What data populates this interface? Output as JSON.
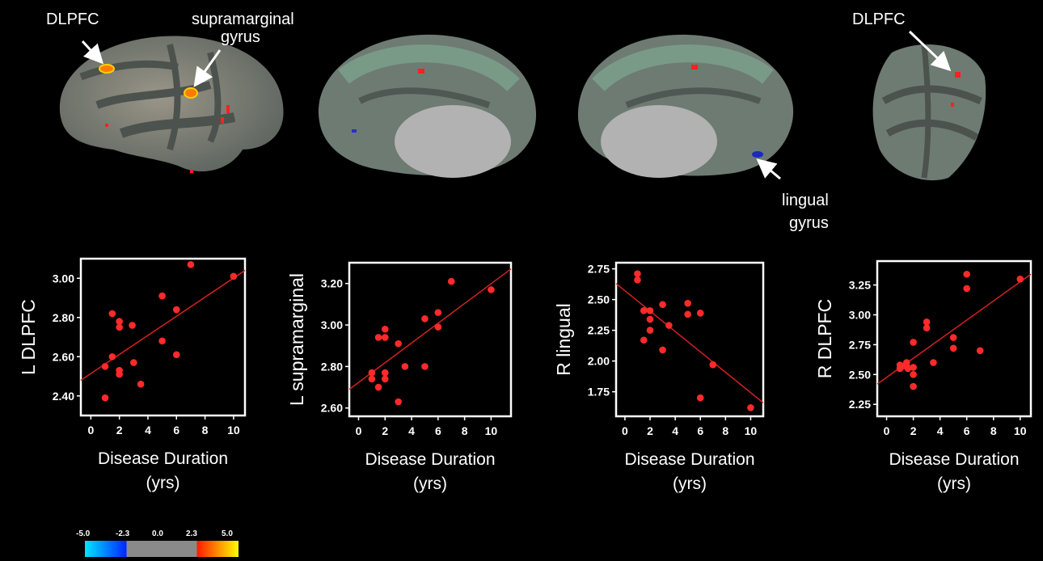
{
  "annotations": {
    "dlpfc_left": "DLPFC",
    "supramarginal_line1": "supramarginal",
    "supramarginal_line2": "gyrus",
    "lingual_line1": "lingual",
    "lingual_line2": "gyrus",
    "dlpfc_right": "DLPFC"
  },
  "colors": {
    "background": "#000000",
    "point": "#ff2a2a",
    "fit_line": "#d42020",
    "frame": "#ffffff"
  },
  "colorbar": {
    "ticks": [
      "-5.0",
      "-2.3",
      "0.0",
      "2.3",
      "5.0"
    ],
    "stops": [
      "#00e5ff",
      "#0026ff",
      "#8a8a8a",
      "#ff1a00",
      "#ffff00"
    ]
  },
  "chart_data": [
    {
      "type": "scatter",
      "xlabel_line1": "Disease Duration",
      "xlabel_line2": "(yrs)",
      "ylabel": "L DLPFC",
      "xlim": [
        -0.7,
        10.8
      ],
      "ylim": [
        2.3,
        3.1
      ],
      "xticks": [
        "0",
        "2",
        "4",
        "6",
        "8",
        "10"
      ],
      "yticks": [
        "2.40",
        "2.60",
        "2.80",
        "3.00"
      ],
      "points": [
        [
          1.0,
          2.39
        ],
        [
          1.0,
          2.55
        ],
        [
          1.5,
          2.6
        ],
        [
          1.5,
          2.82
        ],
        [
          2.0,
          2.78
        ],
        [
          2.0,
          2.75
        ],
        [
          2.0,
          2.53
        ],
        [
          2.0,
          2.51
        ],
        [
          2.9,
          2.76
        ],
        [
          3.0,
          2.57
        ],
        [
          3.5,
          2.46
        ],
        [
          5.0,
          2.91
        ],
        [
          5.0,
          2.68
        ],
        [
          6.0,
          2.84
        ],
        [
          6.0,
          2.61
        ],
        [
          7.0,
          3.07
        ],
        [
          10.0,
          3.01
        ]
      ],
      "fit": [
        [
          -0.7,
          2.48
        ],
        [
          10.8,
          3.04
        ]
      ]
    },
    {
      "type": "scatter",
      "xlabel_line1": "Disease Duration",
      "xlabel_line2": "(yrs)",
      "ylabel": "L supramarginal",
      "xlim": [
        -0.7,
        11.5
      ],
      "ylim": [
        2.56,
        3.3
      ],
      "xticks": [
        "0",
        "2",
        "4",
        "6",
        "8",
        "10"
      ],
      "yticks": [
        "2.60",
        "2.80",
        "3.00",
        "3.20"
      ],
      "points": [
        [
          1.0,
          2.77
        ],
        [
          1.0,
          2.74
        ],
        [
          1.5,
          2.94
        ],
        [
          1.5,
          2.7
        ],
        [
          2.0,
          2.98
        ],
        [
          2.0,
          2.94
        ],
        [
          2.0,
          2.77
        ],
        [
          2.0,
          2.74
        ],
        [
          3.0,
          2.91
        ],
        [
          3.0,
          2.63
        ],
        [
          3.5,
          2.8
        ],
        [
          5.0,
          3.03
        ],
        [
          5.0,
          2.8
        ],
        [
          6.0,
          3.06
        ],
        [
          6.0,
          2.99
        ],
        [
          7.0,
          3.21
        ],
        [
          10.0,
          3.17
        ]
      ],
      "fit": [
        [
          -0.7,
          2.69
        ],
        [
          11.5,
          3.27
        ]
      ]
    },
    {
      "type": "scatter",
      "xlabel_line1": "Disease Duration",
      "xlabel_line2": "(yrs)",
      "ylabel": "R lingual",
      "xlim": [
        -0.7,
        11.0
      ],
      "ylim": [
        1.55,
        2.8
      ],
      "xticks": [
        "0",
        "2",
        "4",
        "6",
        "8",
        "10"
      ],
      "yticks": [
        "1.75",
        "2.00",
        "2.25",
        "2.50",
        "2.75"
      ],
      "points": [
        [
          1.0,
          2.71
        ],
        [
          1.0,
          2.66
        ],
        [
          1.5,
          2.41
        ],
        [
          1.5,
          2.17
        ],
        [
          2.0,
          2.41
        ],
        [
          2.0,
          2.34
        ],
        [
          2.0,
          2.25
        ],
        [
          3.0,
          2.46
        ],
        [
          3.0,
          2.09
        ],
        [
          3.5,
          2.29
        ],
        [
          5.0,
          2.47
        ],
        [
          5.0,
          2.38
        ],
        [
          6.0,
          2.39
        ],
        [
          6.0,
          1.7
        ],
        [
          7.0,
          1.97
        ],
        [
          10.0,
          1.62
        ]
      ],
      "fit": [
        [
          -0.7,
          2.63
        ],
        [
          11.0,
          1.66
        ]
      ]
    },
    {
      "type": "scatter",
      "xlabel_line1": "Disease Duration",
      "xlabel_line2": "(yrs)",
      "ylabel": "R DLPFC",
      "xlim": [
        -0.7,
        10.8
      ],
      "ylim": [
        2.15,
        3.45
      ],
      "xticks": [
        "0",
        "2",
        "4",
        "6",
        "8",
        "10"
      ],
      "yticks": [
        "2.25",
        "2.50",
        "2.75",
        "3.00",
        "3.25"
      ],
      "points": [
        [
          1.0,
          2.58
        ],
        [
          1.0,
          2.55
        ],
        [
          1.2,
          2.57
        ],
        [
          1.5,
          2.6
        ],
        [
          1.5,
          2.57
        ],
        [
          1.6,
          2.55
        ],
        [
          2.0,
          2.77
        ],
        [
          2.0,
          2.56
        ],
        [
          2.0,
          2.5
        ],
        [
          2.0,
          2.4
        ],
        [
          3.0,
          2.94
        ],
        [
          3.0,
          2.89
        ],
        [
          3.5,
          2.6
        ],
        [
          5.0,
          2.81
        ],
        [
          5.0,
          2.72
        ],
        [
          6.0,
          3.34
        ],
        [
          6.0,
          3.22
        ],
        [
          7.0,
          2.7
        ],
        [
          10.0,
          3.3
        ]
      ],
      "fit": [
        [
          -0.7,
          2.42
        ],
        [
          10.8,
          3.34
        ]
      ]
    }
  ]
}
